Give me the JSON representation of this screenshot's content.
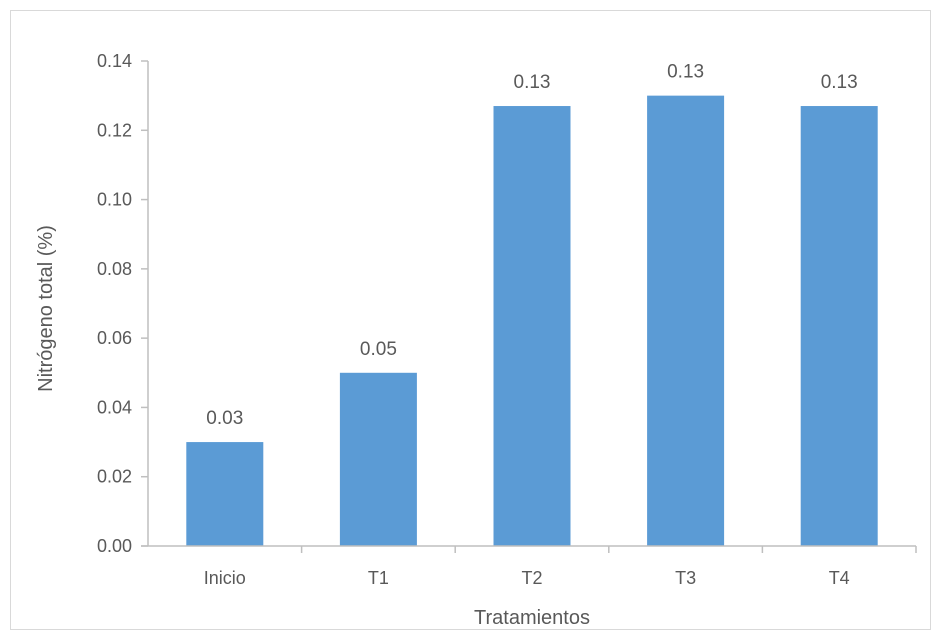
{
  "chart_data": {
    "type": "bar",
    "title": "",
    "xlabel": "Tratamientos",
    "ylabel": "Nitrógeno total (%)",
    "categories": [
      "Inicio",
      "T1",
      "T2",
      "T3",
      "T4"
    ],
    "values": [
      0.03,
      0.05,
      0.127,
      0.13,
      0.127
    ],
    "data_labels": [
      "0.03",
      "0.05",
      "0.13",
      "0.13",
      "0.13"
    ],
    "ylim": [
      0,
      0.14
    ],
    "yticks": [
      0.0,
      0.02,
      0.04,
      0.06,
      0.08,
      0.1,
      0.12,
      0.14
    ],
    "ytick_labels": [
      "0.00",
      "0.02",
      "0.04",
      "0.06",
      "0.08",
      "0.10",
      "0.12",
      "0.14"
    ],
    "grid": false,
    "legend": "none",
    "colors": {
      "bar": "#5b9bd5",
      "axis": "#bfbfbf",
      "text": "#595959"
    }
  }
}
